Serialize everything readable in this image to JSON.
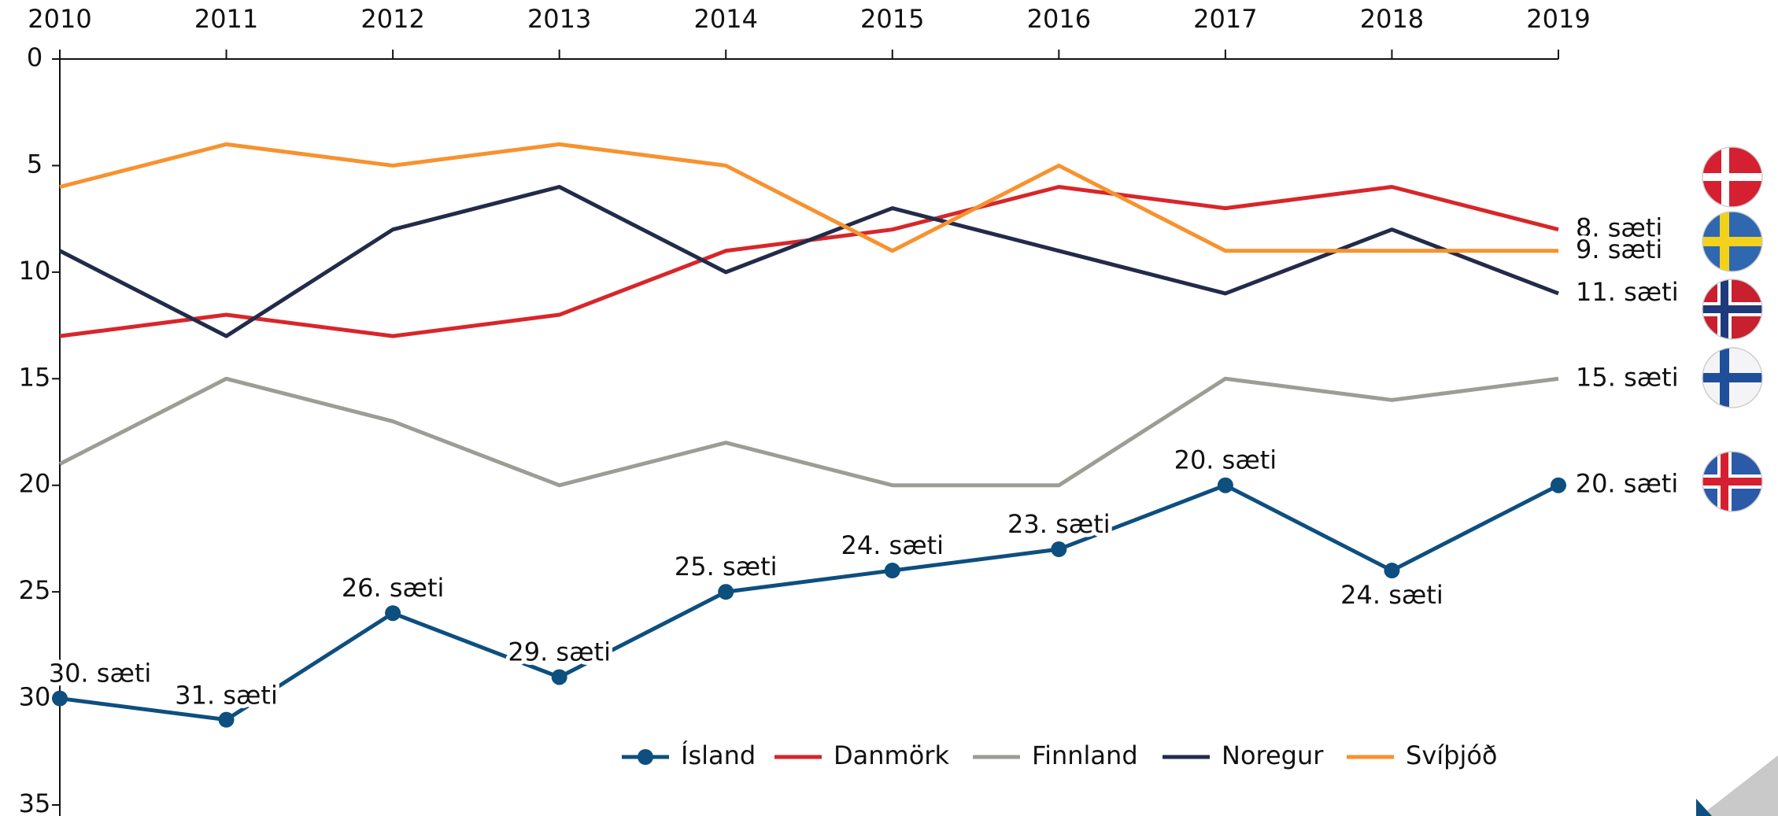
{
  "chart_data": {
    "type": "line",
    "x": [
      2010,
      2011,
      2012,
      2013,
      2014,
      2015,
      2016,
      2017,
      2018,
      2019
    ],
    "xlim": [
      2010,
      2019
    ],
    "xticks": [
      2010,
      2011,
      2012,
      2013,
      2014,
      2015,
      2016,
      2017,
      2018,
      2019
    ],
    "ylim": [
      0,
      35
    ],
    "y_reversed": true,
    "yticks": [
      0,
      5,
      10,
      15,
      20,
      25,
      30,
      35
    ],
    "series": [
      {
        "name": "Ísland",
        "color": "#0d4f7f",
        "marker": true,
        "values": [
          30,
          31,
          26,
          29,
          25,
          24,
          23,
          20,
          24,
          20
        ],
        "value_labels": [
          "30. sæti",
          "31. sæti",
          "26. sæti",
          "29. sæti",
          "25. sæti",
          "24. sæti",
          "23. sæti",
          "20. sæti",
          "24. sæti",
          "20. sæti"
        ]
      },
      {
        "name": "Danmörk",
        "color": "#d8262a",
        "values": [
          13,
          12,
          13,
          12,
          9,
          8,
          6,
          7,
          6,
          8
        ],
        "value_labels": [
          null,
          null,
          null,
          null,
          null,
          null,
          null,
          null,
          null,
          "8. sæti"
        ]
      },
      {
        "name": "Finnland",
        "color": "#9d9d96",
        "values": [
          19,
          15,
          17,
          20,
          18,
          20,
          20,
          15,
          16,
          15
        ],
        "value_labels": [
          null,
          null,
          null,
          null,
          null,
          null,
          null,
          null,
          null,
          "15. sæti"
        ]
      },
      {
        "name": "Noregur",
        "color": "#222b4a",
        "values": [
          9,
          13,
          8,
          6,
          10,
          7,
          9,
          11,
          8,
          11
        ],
        "value_labels": [
          null,
          null,
          null,
          null,
          null,
          null,
          null,
          null,
          null,
          "11. sæti"
        ]
      },
      {
        "name": "Svíþjóð",
        "color": "#f7922f",
        "values": [
          6,
          4,
          5,
          4,
          5,
          9,
          5,
          9,
          9,
          9
        ],
        "value_labels": [
          null,
          null,
          null,
          null,
          null,
          null,
          null,
          null,
          null,
          "9. sæti"
        ]
      }
    ],
    "legend": "bottom"
  }
}
